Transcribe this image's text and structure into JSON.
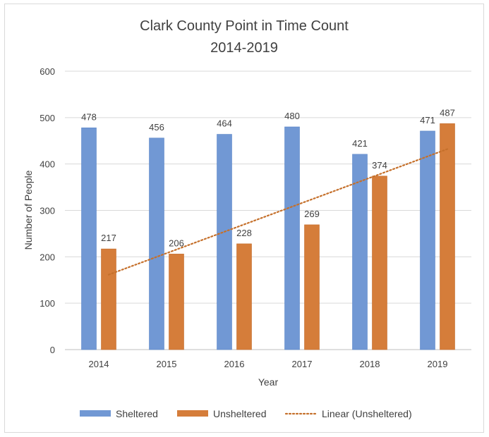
{
  "chart_data": {
    "type": "bar",
    "title": "Clark County Point in Time Count",
    "subtitle": "2014-2019",
    "xlabel": "Year",
    "ylabel": "Number of People",
    "categories": [
      "2014",
      "2015",
      "2016",
      "2017",
      "2018",
      "2019"
    ],
    "ylim": [
      0,
      600
    ],
    "yticks": [
      0,
      100,
      200,
      300,
      400,
      500,
      600
    ],
    "grid": true,
    "legend_position": "bottom",
    "series": [
      {
        "name": "Sheltered",
        "values": [
          478,
          456,
          464,
          480,
          421,
          471
        ],
        "color": "#7198d4"
      },
      {
        "name": "Unsheltered",
        "values": [
          217,
          206,
          228,
          269,
          374,
          487
        ],
        "color": "#d57d3a"
      }
    ],
    "trendline": {
      "name": "Linear (Unsheltered)",
      "of_series": "Unsheltered",
      "style": "dotted",
      "color": "#c5702b"
    }
  }
}
